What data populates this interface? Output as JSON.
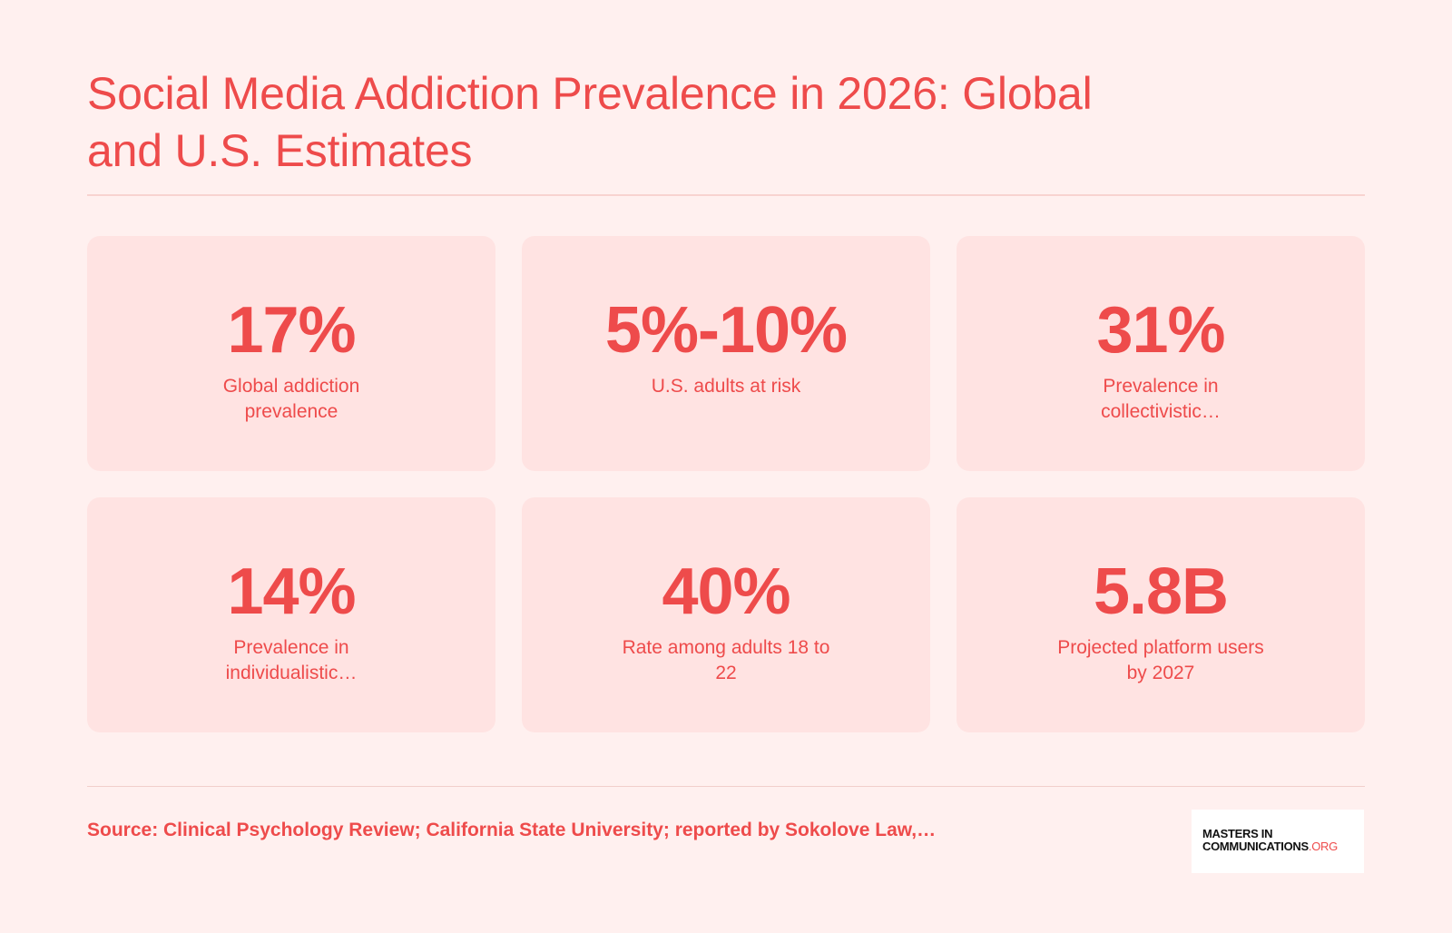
{
  "title": "Social Media Addiction Prevalence in 2026: Global and U.S. Estimates",
  "stats": [
    {
      "value": "17%",
      "label": "Global addiction prevalence"
    },
    {
      "value": "5%-10%",
      "label": "U.S. adults at risk"
    },
    {
      "value": "31%",
      "label": "Prevalence in collectivistic…"
    },
    {
      "value": "14%",
      "label": "Prevalence in individualistic…"
    },
    {
      "value": "40%",
      "label": "Rate among adults 18 to 22"
    },
    {
      "value": "5.8B",
      "label": "Projected platform users by 2027"
    }
  ],
  "source": "Source: Clinical Psychology Review; California State University; reported by Sokolove Law,…",
  "logo": {
    "line1": "MASTERS IN",
    "line2": "COMMUNICATIONS",
    "suffix": ".ORG"
  },
  "colors": {
    "accent": "#ee4b4b",
    "background": "#fff0ef",
    "card": "#ffe3e2"
  }
}
